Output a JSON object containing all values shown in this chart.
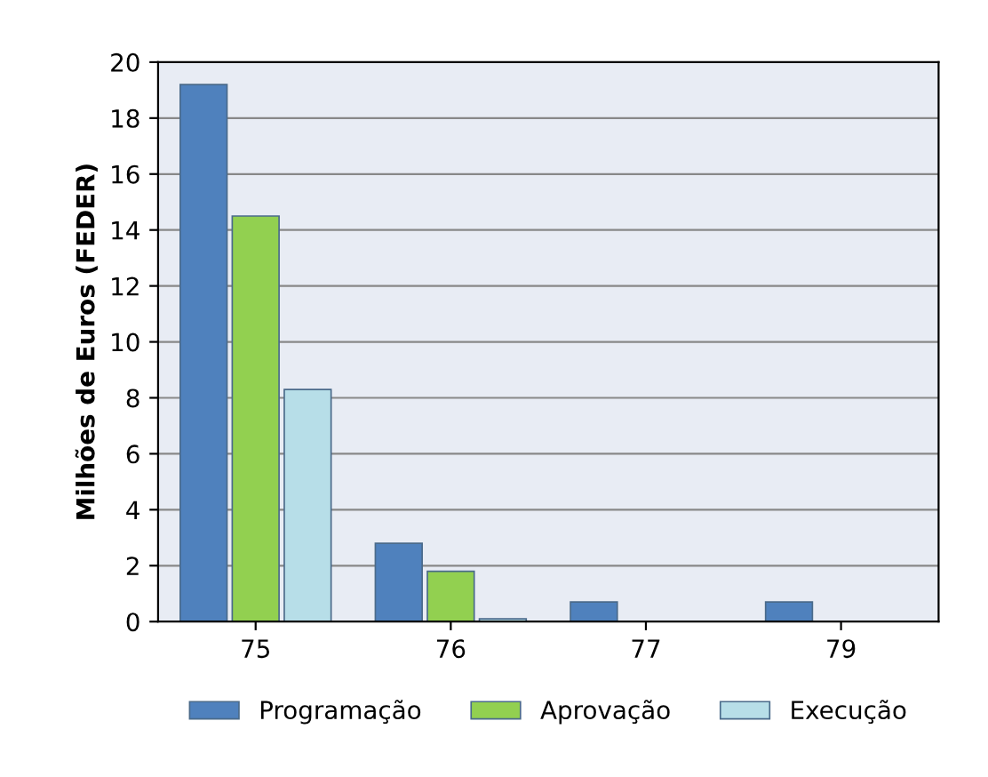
{
  "chart_data": {
    "type": "bar",
    "ylabel": "Milhões de Euros (FEDER)",
    "categories": [
      "75",
      "76",
      "77",
      "79"
    ],
    "series": [
      {
        "name": "Programação",
        "color": "#4f81bd",
        "values": [
          19.2,
          2.8,
          0.7,
          0.7
        ]
      },
      {
        "name": "Aprovação",
        "color": "#92d050",
        "values": [
          14.5,
          1.8,
          null,
          null
        ]
      },
      {
        "name": "Execução",
        "color": "#b7dee8",
        "values": [
          8.3,
          0.1,
          null,
          null
        ]
      }
    ],
    "ylim": [
      0,
      20
    ],
    "yticks": [
      0,
      2,
      4,
      6,
      8,
      10,
      12,
      14,
      16,
      18,
      20
    ],
    "grid": "y",
    "legend": "bottom"
  }
}
